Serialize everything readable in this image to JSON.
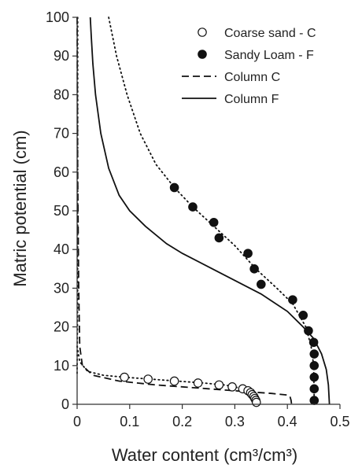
{
  "chart_data": {
    "type": "scatter",
    "xlabel": "Water content (cm³/cm³)",
    "ylabel": "Matric potential (cm)",
    "xlim": [
      0,
      0.5
    ],
    "ylim": [
      0,
      100
    ],
    "x_ticks": [
      0,
      0.1,
      0.2,
      0.3,
      0.4,
      0.5
    ],
    "x_tick_labels": [
      "0",
      "0.1",
      "0.2",
      "0.3",
      "0.4",
      "0.5"
    ],
    "y_ticks": [
      0,
      10,
      20,
      30,
      40,
      50,
      60,
      70,
      80,
      90,
      100
    ],
    "y_tick_labels": [
      "0",
      "10",
      "20",
      "30",
      "40",
      "50",
      "60",
      "70",
      "80",
      "90",
      "100"
    ],
    "legend_position": "top-right",
    "series": [
      {
        "name": "Coarse sand - C",
        "kind": "scatter",
        "marker": "open-circle",
        "points": [
          [
            0.09,
            7.0
          ],
          [
            0.135,
            6.5
          ],
          [
            0.185,
            6.0
          ],
          [
            0.23,
            5.5
          ],
          [
            0.27,
            5.0
          ],
          [
            0.295,
            4.5
          ],
          [
            0.315,
            4.0
          ],
          [
            0.325,
            3.5
          ],
          [
            0.33,
            3.0
          ],
          [
            0.333,
            2.5
          ],
          [
            0.336,
            2.0
          ],
          [
            0.338,
            1.5
          ],
          [
            0.34,
            1.0
          ],
          [
            0.341,
            0.5
          ]
        ]
      },
      {
        "name": "Sandy Loam - F",
        "kind": "scatter",
        "marker": "filled-circle",
        "points": [
          [
            0.185,
            56
          ],
          [
            0.22,
            51
          ],
          [
            0.26,
            47
          ],
          [
            0.27,
            43
          ],
          [
            0.325,
            39
          ],
          [
            0.337,
            35
          ],
          [
            0.35,
            31
          ],
          [
            0.41,
            27
          ],
          [
            0.43,
            23
          ],
          [
            0.44,
            19
          ],
          [
            0.45,
            16
          ],
          [
            0.451,
            13
          ],
          [
            0.451,
            10
          ],
          [
            0.451,
            7
          ],
          [
            0.451,
            4
          ],
          [
            0.451,
            1
          ]
        ]
      },
      {
        "name": "Column C",
        "kind": "line",
        "style": "dashed",
        "points": [
          [
            0.0,
            100
          ],
          [
            0.001,
            60
          ],
          [
            0.003,
            30
          ],
          [
            0.005,
            15
          ],
          [
            0.01,
            10
          ],
          [
            0.03,
            7.5
          ],
          [
            0.08,
            6.0
          ],
          [
            0.15,
            5.0
          ],
          [
            0.25,
            4.0
          ],
          [
            0.32,
            3.3
          ],
          [
            0.37,
            2.8
          ],
          [
            0.4,
            2.4
          ],
          [
            0.405,
            2.0
          ],
          [
            0.407,
            1.0
          ],
          [
            0.408,
            0
          ]
        ]
      },
      {
        "name": "Column F",
        "kind": "line",
        "style": "solid",
        "points": [
          [
            0.025,
            100
          ],
          [
            0.027,
            95
          ],
          [
            0.03,
            88
          ],
          [
            0.035,
            80
          ],
          [
            0.045,
            70
          ],
          [
            0.06,
            61
          ],
          [
            0.08,
            54
          ],
          [
            0.1,
            50
          ],
          [
            0.13,
            46
          ],
          [
            0.17,
            41.5
          ],
          [
            0.2,
            39
          ],
          [
            0.25,
            35.5
          ],
          [
            0.3,
            32
          ],
          [
            0.35,
            28.5
          ],
          [
            0.4,
            24
          ],
          [
            0.43,
            20
          ],
          [
            0.45,
            17
          ],
          [
            0.465,
            13
          ],
          [
            0.474,
            9
          ],
          [
            0.478,
            5
          ],
          [
            0.48,
            0
          ]
        ]
      },
      {
        "kind": "line",
        "style": "dotted",
        "fit_for": "Sandy Loam - F",
        "points": [
          [
            0.0,
            8
          ],
          [
            0.001,
            30
          ],
          [
            0.001,
            100
          ]
        ]
      },
      {
        "kind": "line",
        "style": "dotted",
        "fit_for": "Sandy Loam - F",
        "points": [
          [
            0.06,
            100
          ],
          [
            0.075,
            90
          ],
          [
            0.095,
            80
          ],
          [
            0.12,
            70
          ],
          [
            0.15,
            62
          ],
          [
            0.185,
            56
          ],
          [
            0.22,
            51
          ],
          [
            0.26,
            46
          ],
          [
            0.3,
            41
          ],
          [
            0.34,
            35
          ],
          [
            0.38,
            30
          ],
          [
            0.41,
            26
          ],
          [
            0.435,
            20
          ],
          [
            0.445,
            15
          ],
          [
            0.45,
            10
          ],
          [
            0.451,
            0
          ]
        ]
      },
      {
        "kind": "line",
        "style": "dotted",
        "fit_for": "Coarse sand - C",
        "points": [
          [
            0.0,
            15
          ],
          [
            0.005,
            11
          ],
          [
            0.02,
            8.5
          ],
          [
            0.05,
            7.5
          ],
          [
            0.09,
            7.0
          ],
          [
            0.14,
            6.5
          ],
          [
            0.19,
            6.0
          ],
          [
            0.24,
            5.5
          ],
          [
            0.28,
            5.0
          ],
          [
            0.31,
            4.2
          ],
          [
            0.33,
            3.2
          ],
          [
            0.338,
            2.0
          ],
          [
            0.342,
            0.5
          ]
        ]
      }
    ]
  }
}
